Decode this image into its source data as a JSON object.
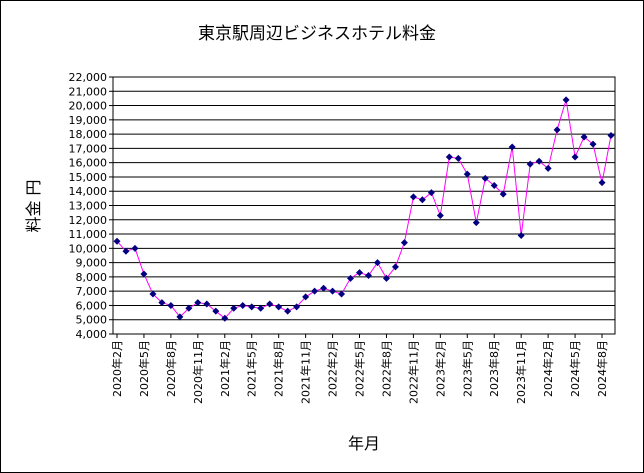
{
  "chart_data": {
    "type": "line",
    "title": "東京駅周辺ビジネスホテル料金",
    "xlabel": "年月",
    "ylabel": "料金 円",
    "ylim": [
      4000,
      22000
    ],
    "y_ticks": [
      4000,
      5000,
      6000,
      7000,
      8000,
      9000,
      10000,
      11000,
      12000,
      13000,
      14000,
      15000,
      16000,
      17000,
      18000,
      19000,
      20000,
      21000,
      22000
    ],
    "y_tick_labels": [
      "4,000",
      "5,000",
      "6,000",
      "7,000",
      "8,000",
      "9,000",
      "10,000",
      "11,000",
      "12,000",
      "13,000",
      "14,000",
      "15,000",
      "16,000",
      "17,000",
      "18,000",
      "19,000",
      "20,000",
      "21,000",
      "22,000"
    ],
    "x_tick_labels": [
      {
        "index": 0,
        "label": "2020年2月"
      },
      {
        "index": 3,
        "label": "2020年5月"
      },
      {
        "index": 6,
        "label": "2020年8月"
      },
      {
        "index": 9,
        "label": "2020年11月"
      },
      {
        "index": 12,
        "label": "2021年2月"
      },
      {
        "index": 15,
        "label": "2021年5月"
      },
      {
        "index": 18,
        "label": "2021年8月"
      },
      {
        "index": 21,
        "label": "2021年11月"
      },
      {
        "index": 24,
        "label": "2022年2月"
      },
      {
        "index": 27,
        "label": "2022年5月"
      },
      {
        "index": 30,
        "label": "2022年8月"
      },
      {
        "index": 33,
        "label": "2022年11月"
      },
      {
        "index": 36,
        "label": "2023年2月"
      },
      {
        "index": 39,
        "label": "2023年5月"
      },
      {
        "index": 42,
        "label": "2023年8月"
      },
      {
        "index": 45,
        "label": "2023年11月"
      },
      {
        "index": 48,
        "label": "2024年2月"
      },
      {
        "index": 51,
        "label": "2024年5月"
      },
      {
        "index": 54,
        "label": "2024年8月"
      }
    ],
    "grid": "horizontal",
    "legend": "none",
    "series": [
      {
        "line_color": "#ff00ff",
        "marker_color": "#000080",
        "marker": "diamond",
        "values": [
          10500,
          9800,
          10000,
          8200,
          6800,
          6200,
          6000,
          5200,
          5800,
          6200,
          6100,
          5600,
          5100,
          5800,
          6000,
          5900,
          5800,
          6100,
          5900,
          5600,
          5900,
          6600,
          7000,
          7200,
          7000,
          6800,
          7900,
          8300,
          8100,
          9000,
          7900,
          8700,
          10400,
          13600,
          13400,
          13900,
          12300,
          16400,
          16300,
          15200,
          11800,
          14900,
          14400,
          13800,
          17100,
          10900,
          15900,
          16100,
          15600,
          18300,
          20400,
          16400,
          17800,
          17300,
          14600,
          17900
        ]
      }
    ]
  }
}
